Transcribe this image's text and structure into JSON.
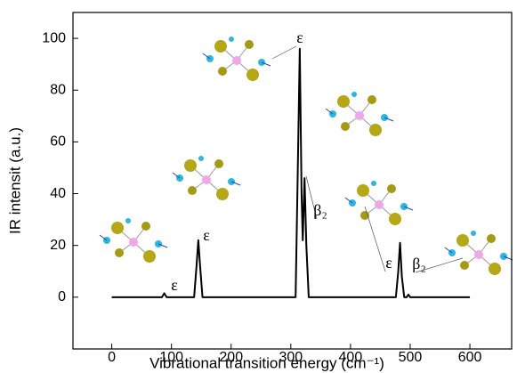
{
  "chart_data": {
    "type": "line",
    "xlabel": "Vibrational transition energy (cm⁻¹)",
    "ylabel": "IR intensit (a.u.)",
    "xlim": [
      -65,
      670
    ],
    "ylim": [
      -20,
      110
    ],
    "xticks": [
      0,
      100,
      200,
      300,
      400,
      500,
      600
    ],
    "yticks": [
      0,
      20,
      40,
      60,
      80,
      100
    ],
    "annotations": [
      "ε",
      "ε",
      "ε",
      "β₂",
      "ε",
      "β₂"
    ],
    "series": [
      {
        "color": "#000000",
        "x": [
          0,
          84,
          88,
          92,
          138,
          142,
          145,
          148,
          152,
          308,
          311,
          315,
          318,
          320,
          323,
          326,
          330,
          476,
          480,
          483,
          486,
          490,
          494,
          497,
          500,
          600
        ],
        "values": [
          0,
          0,
          1.5,
          0,
          0,
          12,
          22,
          12,
          0,
          0,
          40,
          96,
          40,
          22,
          46,
          20,
          0,
          0,
          10,
          21,
          8,
          0,
          0,
          1,
          0,
          0
        ]
      }
    ]
  }
}
